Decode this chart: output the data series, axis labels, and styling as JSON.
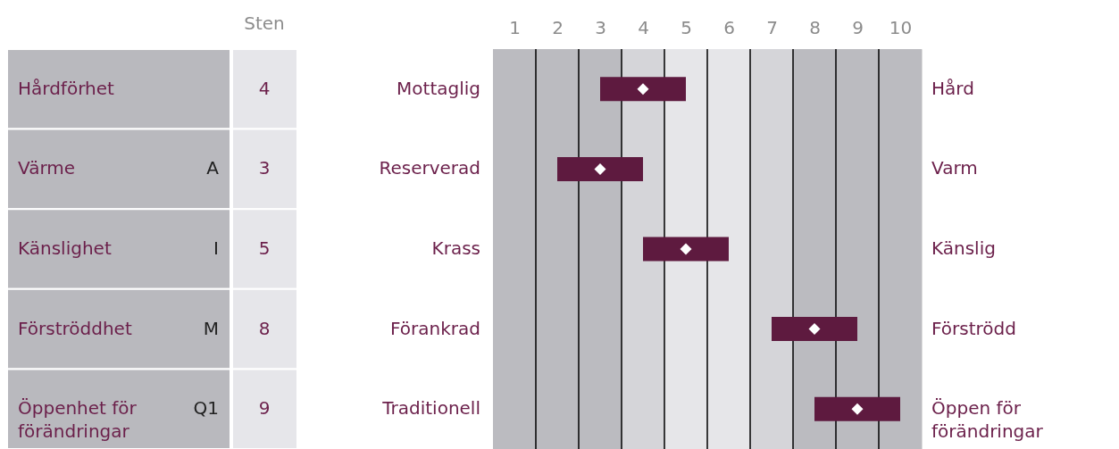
{
  "chart_data": {
    "type": "bar",
    "orientation": "horizontal",
    "categories": [
      "Mottaglig",
      "Reserverad",
      "Krass",
      "Förankrad",
      "Traditionell"
    ],
    "series": [
      {
        "color": "#5e1a3f",
        "base": [
          3,
          2,
          4,
          7,
          8
        ],
        "values": [
          2,
          2,
          2,
          2,
          2
        ]
      },
      {
        "type": "scatter",
        "color": "#ffffff",
        "values": [
          4,
          3,
          5,
          8,
          9
        ],
        "value_labels": [
          "4",
          "3",
          "5",
          "8",
          "9"
        ]
      }
    ],
    "marker": "diamond",
    "xlim": [
      0.5,
      10.5
    ],
    "xticks": [
      1,
      2,
      3,
      4,
      5,
      6,
      7,
      8,
      9,
      10
    ],
    "bands": [
      {
        "axis": "x",
        "from": 0.5,
        "to": 3.5,
        "color": "#bbbbc0"
      },
      {
        "axis": "x",
        "from": 3.5,
        "to": 4.5,
        "color": "#d5d5d9"
      },
      {
        "axis": "x",
        "from": 4.5,
        "to": 6.5,
        "color": "#e6e6e9"
      },
      {
        "axis": "x",
        "from": 6.5,
        "to": 7.5,
        "color": "#d5d5d9"
      },
      {
        "axis": "x",
        "from": 7.5,
        "to": 10.5,
        "color": "#bbbbc0"
      }
    ],
    "ref_lines": [
      {
        "axis": "x",
        "value": 1.5,
        "color": "#000000"
      },
      {
        "axis": "x",
        "value": 2.5,
        "color": "#000000"
      },
      {
        "axis": "x",
        "value": 3.5,
        "color": "#000000"
      },
      {
        "axis": "x",
        "value": 4.5,
        "color": "#000000"
      },
      {
        "axis": "x",
        "value": 5.5,
        "color": "#000000"
      },
      {
        "axis": "x",
        "value": 6.5,
        "color": "#000000"
      },
      {
        "axis": "x",
        "value": 7.5,
        "color": "#000000"
      },
      {
        "axis": "x",
        "value": 8.5,
        "color": "#000000"
      },
      {
        "axis": "x",
        "value": 9.5,
        "color": "#000000"
      }
    ],
    "annotations": [
      "Sten",
      "Hårdförhet",
      "Värme",
      "Känslighet",
      "Förströddhet",
      "Öppenhet för förändringar",
      "Hård",
      "Varm",
      "Känslig",
      "Förströdd",
      "Öppen för förändringar",
      "A",
      "I",
      "M",
      "Q1"
    ]
  }
}
